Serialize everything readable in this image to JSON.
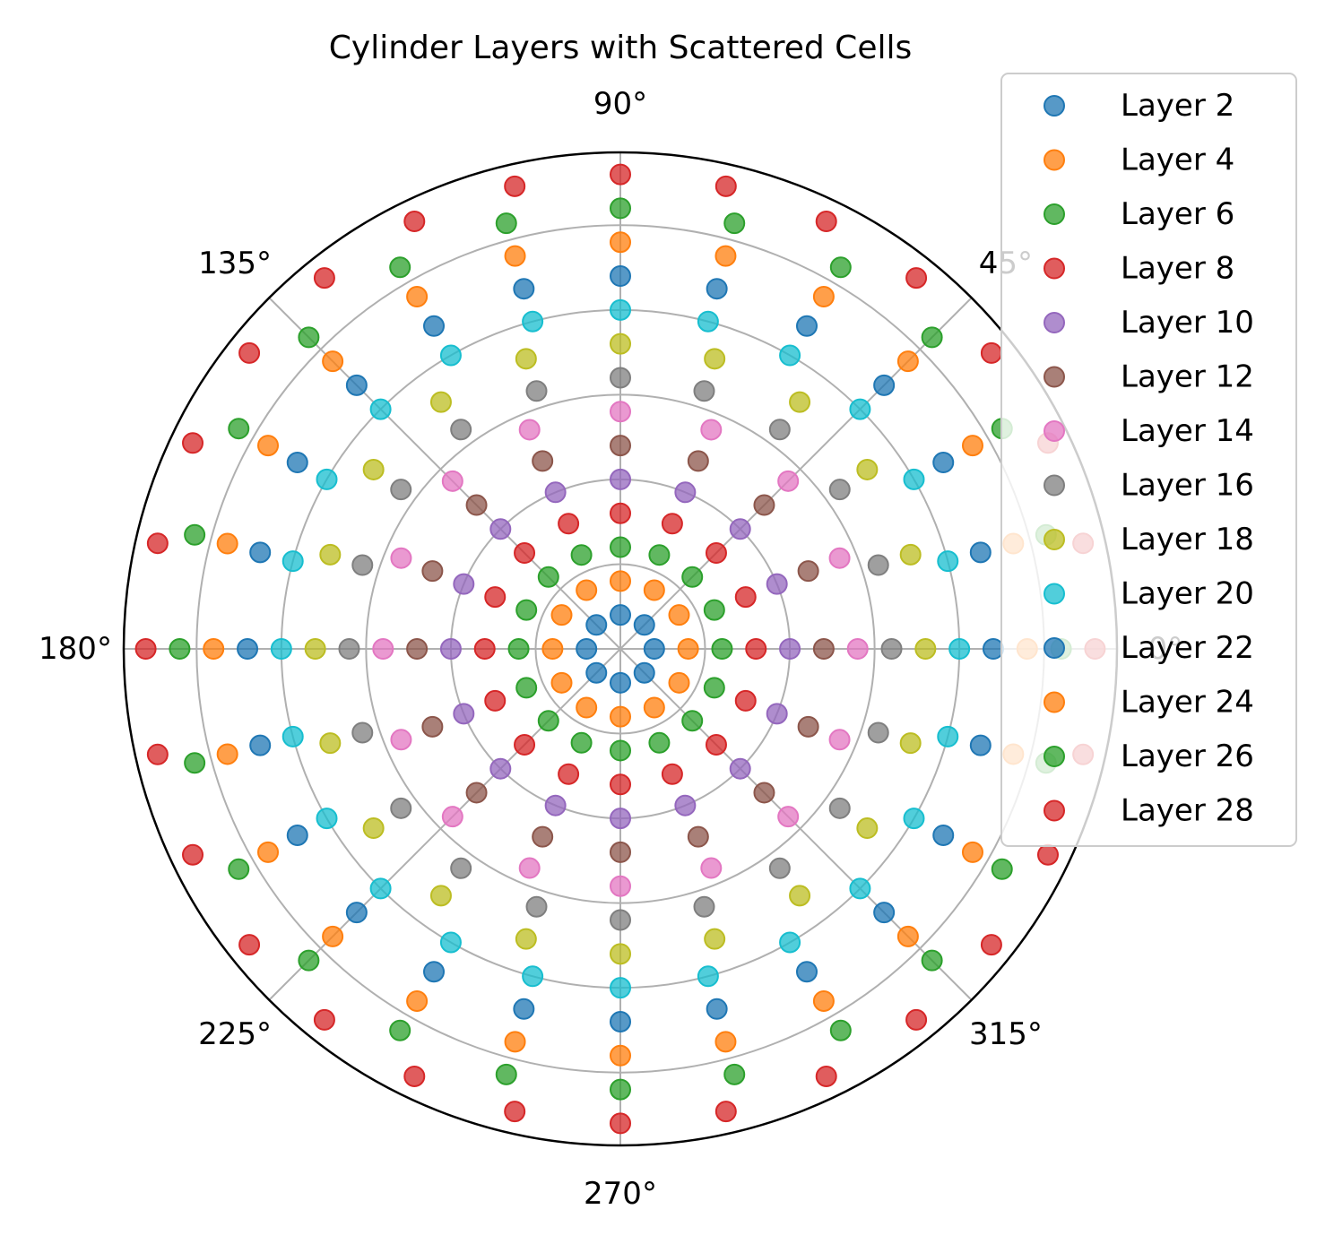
{
  "chart_data": {
    "type": "scatter",
    "projection": "polar",
    "title": "Cylinder Layers with Scattered Cells",
    "theta_unit": "degrees",
    "theta_tick_labels": [
      "0°",
      "45°",
      "90°",
      "135°",
      "180°",
      "225°",
      "270°",
      "315°"
    ],
    "theta_ticks": [
      0,
      45,
      90,
      135,
      180,
      225,
      270,
      315
    ],
    "r_grid": [
      5,
      10,
      15,
      20,
      25
    ],
    "r_tick_labels_visible": false,
    "rlim": [
      0,
      29.3
    ],
    "grid": true,
    "legend_position": "upper right, outside plot",
    "series": [
      {
        "name": "Layer 2",
        "radius": 2,
        "n_cells": 8,
        "color": "#1f77b4"
      },
      {
        "name": "Layer 4",
        "radius": 4,
        "n_cells": 12,
        "color": "#ff7f0e"
      },
      {
        "name": "Layer 6",
        "radius": 6,
        "n_cells": 16,
        "color": "#2ca02c"
      },
      {
        "name": "Layer 8",
        "radius": 8,
        "n_cells": 16,
        "color": "#d62728"
      },
      {
        "name": "Layer 10",
        "radius": 10,
        "n_cells": 16,
        "color": "#9467bd"
      },
      {
        "name": "Layer 12",
        "radius": 12,
        "n_cells": 16,
        "color": "#8c564b"
      },
      {
        "name": "Layer 14",
        "radius": 14,
        "n_cells": 16,
        "color": "#e377c2"
      },
      {
        "name": "Layer 16",
        "radius": 16,
        "n_cells": 20,
        "color": "#7f7f7f"
      },
      {
        "name": "Layer 18",
        "radius": 18,
        "n_cells": 20,
        "color": "#bcbd22"
      },
      {
        "name": "Layer 20",
        "radius": 20,
        "n_cells": 24,
        "color": "#17becf"
      },
      {
        "name": "Layer 22",
        "radius": 22,
        "n_cells": 24,
        "color": "#1f77b4"
      },
      {
        "name": "Layer 24",
        "radius": 24,
        "n_cells": 24,
        "color": "#ff7f0e"
      },
      {
        "name": "Layer 26",
        "radius": 26,
        "n_cells": 24,
        "color": "#2ca02c"
      },
      {
        "name": "Layer 28",
        "radius": 28,
        "n_cells": 28,
        "color": "#d62728"
      }
    ]
  }
}
